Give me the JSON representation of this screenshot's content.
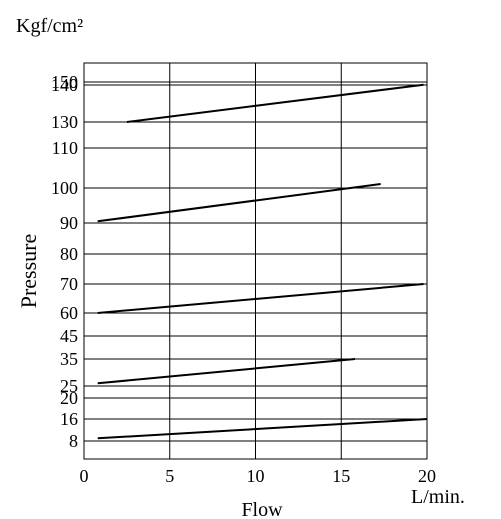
{
  "chart_data": {
    "type": "line",
    "title": "",
    "xlabel": "Flow",
    "ylabel": "Pressure",
    "x_unit": "L/min.",
    "y_unit": "Kgf/cm²",
    "xlim": [
      0,
      20
    ],
    "x_ticks": [
      "0",
      "5",
      "10",
      "15",
      "20"
    ],
    "y_ticks": [
      "150",
      "140",
      "130",
      "110",
      "100",
      "90",
      "80",
      "70",
      "60",
      "45",
      "35",
      "25",
      "20",
      "16",
      "8"
    ],
    "y_scale": "piecewise, as printed on the axis",
    "grid": true,
    "legend": "none",
    "colors": {
      "lines": "#000000",
      "grid": "#000000",
      "background": "#ffffff"
    },
    "series": [
      {
        "x": [
          2.5,
          19.8
        ],
        "y": [
          130,
          141
        ]
      },
      {
        "x": [
          0.8,
          17.3
        ],
        "y": [
          90.5,
          101
        ]
      },
      {
        "x": [
          0.8,
          19.8
        ],
        "y": [
          60,
          70
        ]
      },
      {
        "x": [
          0.8,
          15.8
        ],
        "y": [
          26,
          35
        ]
      },
      {
        "x": [
          0.8,
          20
        ],
        "y": [
          9,
          16
        ]
      }
    ]
  }
}
